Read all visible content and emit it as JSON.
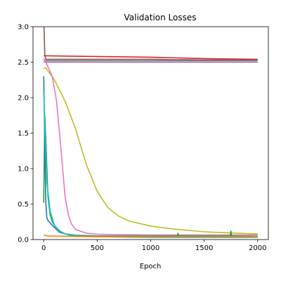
{
  "chart_data": {
    "type": "line",
    "title": "Validation Losses",
    "xlabel": "Epoch",
    "ylabel": "",
    "xlim": [
      -100,
      2100
    ],
    "ylim": [
      0.0,
      3.0
    ],
    "xticks": [
      0,
      500,
      1000,
      1500,
      2000
    ],
    "xtick_labels": [
      "0",
      "500",
      "1000",
      "1500",
      "2000"
    ],
    "yticks": [
      0.0,
      0.5,
      1.0,
      1.5,
      2.0,
      2.5,
      3.0
    ],
    "ytick_labels": [
      "0.0",
      "0.5",
      "1.0",
      "1.5",
      "2.0",
      "2.5",
      "3.0"
    ],
    "grid": false,
    "legend": "none",
    "series": [
      {
        "color": "#d62728",
        "x": [
          0,
          20,
          500,
          1000,
          1500,
          2000
        ],
        "y": [
          2.59,
          2.59,
          2.58,
          2.57,
          2.55,
          2.54
        ]
      },
      {
        "color": "#8c564b",
        "x": [
          0,
          2,
          5,
          10,
          20,
          100,
          500,
          1000,
          1500,
          2000
        ],
        "y": [
          3.0,
          3.0,
          2.9,
          2.6,
          2.54,
          2.54,
          2.54,
          2.54,
          2.53,
          2.53
        ]
      },
      {
        "color": "#7f7f7f",
        "x": [
          0,
          10,
          500,
          1000,
          1500,
          2000
        ],
        "y": [
          2.53,
          2.52,
          2.52,
          2.52,
          2.52,
          2.52
        ]
      },
      {
        "color": "#9467bd",
        "x": [
          0,
          10,
          500,
          1000,
          1500,
          2000
        ],
        "y": [
          2.5,
          2.5,
          2.5,
          2.5,
          2.5,
          2.5
        ]
      },
      {
        "color": "#bcbd22",
        "x": [
          0,
          20,
          100,
          200,
          300,
          400,
          500,
          600,
          700,
          800,
          1000,
          1200,
          1500,
          1800,
          2000
        ],
        "y": [
          2.41,
          2.42,
          2.25,
          1.95,
          1.55,
          1.05,
          0.68,
          0.45,
          0.33,
          0.26,
          0.19,
          0.15,
          0.11,
          0.09,
          0.08
        ]
      },
      {
        "color": "#e377c2",
        "x": [
          0,
          20,
          50,
          80,
          120,
          160,
          200,
          230,
          260,
          300,
          400,
          500,
          700,
          1000,
          1500,
          2000
        ],
        "y": [
          2.55,
          2.5,
          2.4,
          2.3,
          1.95,
          1.3,
          0.6,
          0.35,
          0.22,
          0.14,
          0.09,
          0.075,
          0.07,
          0.065,
          0.065,
          0.065
        ]
      },
      {
        "color": "#2ca02c",
        "x": [
          0,
          10,
          20,
          40,
          60,
          80,
          100,
          150,
          200,
          300,
          500,
          1000,
          1250,
          1255,
          1260,
          1500,
          1745,
          1750,
          1755,
          2000
        ],
        "y": [
          0.52,
          1.75,
          1.4,
          0.6,
          0.35,
          0.25,
          0.2,
          0.12,
          0.08,
          0.06,
          0.05,
          0.05,
          0.05,
          0.09,
          0.05,
          0.05,
          0.05,
          0.12,
          0.05,
          0.045
        ]
      },
      {
        "color": "#1f77b4",
        "x": [
          0,
          10,
          20,
          30,
          40,
          80,
          150,
          250,
          400,
          1000,
          2000
        ],
        "y": [
          2.3,
          1.35,
          0.5,
          0.3,
          0.27,
          0.2,
          0.1,
          0.06,
          0.045,
          0.04,
          0.04
        ]
      },
      {
        "color": "#17becf",
        "x": [
          0,
          10,
          30,
          60,
          100,
          150,
          200,
          300,
          500,
          1000,
          2000
        ],
        "y": [
          2.1,
          1.6,
          0.8,
          0.4,
          0.2,
          0.11,
          0.08,
          0.05,
          0.04,
          0.03,
          0.03
        ]
      },
      {
        "color": "#ff7f0e",
        "x": [
          0,
          50,
          500,
          1000,
          2000
        ],
        "y": [
          0.06,
          0.05,
          0.04,
          0.04,
          0.04
        ]
      }
    ]
  }
}
